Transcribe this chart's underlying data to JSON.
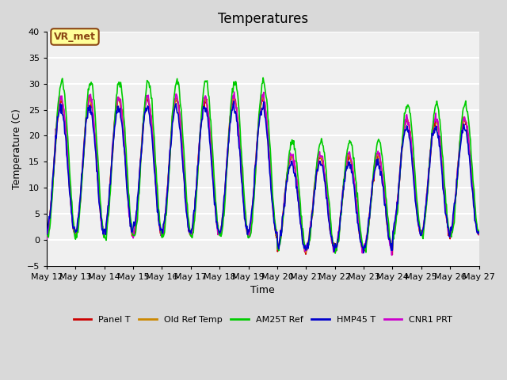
{
  "title": "Temperatures",
  "xlabel": "Time",
  "ylabel": "Temperature (C)",
  "ylim": [
    -5,
    40
  ],
  "annotation": "VR_met",
  "colors": {
    "Panel T": "#cc0000",
    "Old Ref Temp": "#cc8800",
    "AM25T Ref": "#00cc00",
    "HMP45 T": "#0000cc",
    "CNR1 PRT": "#cc00cc"
  },
  "legend_labels": [
    "Panel T",
    "Old Ref Temp",
    "AM25T Ref",
    "HMP45 T",
    "CNR1 PRT"
  ],
  "x_tick_labels": [
    "May 12",
    "May 13",
    "May 14",
    "May 15",
    "May 16",
    "May 17",
    "May 18",
    "May 19",
    "May 20",
    "May 21",
    "May 22",
    "May 23",
    "May 24",
    "May 25",
    "May 26",
    "May 27"
  ],
  "num_days": 15,
  "points_per_day": 48
}
